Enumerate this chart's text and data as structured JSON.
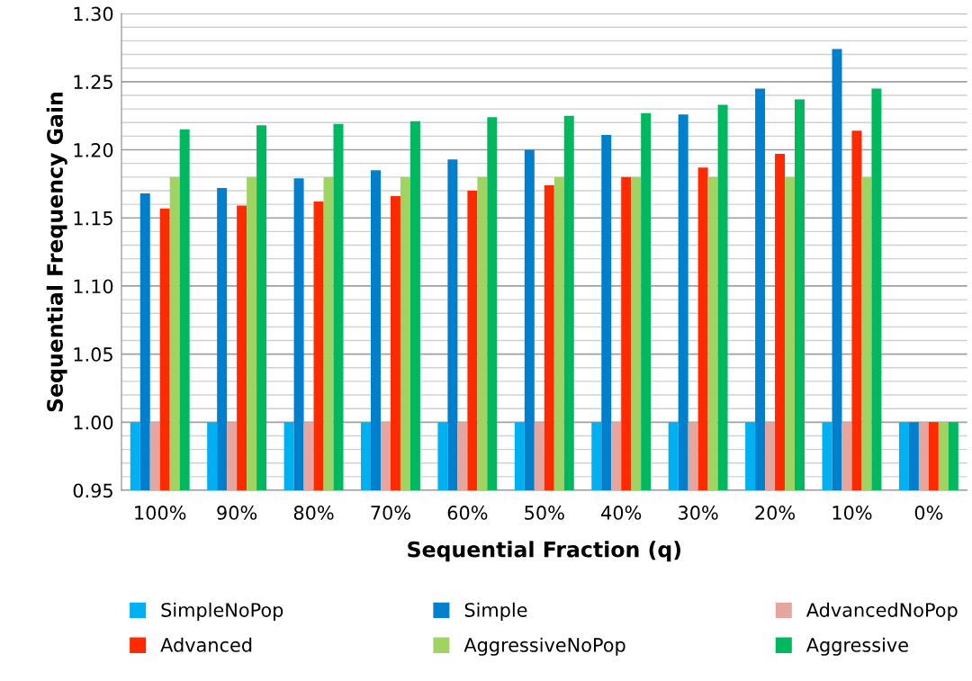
{
  "chart_data": {
    "type": "bar",
    "xlabel": "Sequential Fraction (q)",
    "ylabel": "Sequential Frequency Gain",
    "categories": [
      "100%",
      "90%",
      "80%",
      "70%",
      "60%",
      "50%",
      "40%",
      "30%",
      "20%",
      "10%",
      "0%"
    ],
    "series": [
      {
        "name": "SimpleNoPop",
        "color": "#00b0f0",
        "values": [
          1.0,
          1.0,
          1.0,
          1.0,
          1.0,
          1.0,
          1.0,
          1.0,
          1.0,
          1.0,
          1.0
        ]
      },
      {
        "name": "Simple",
        "color": "#0080cc",
        "values": [
          1.168,
          1.172,
          1.179,
          1.185,
          1.193,
          1.2,
          1.211,
          1.226,
          1.245,
          1.274,
          1.0
        ]
      },
      {
        "name": "AdvancedNoPop",
        "color": "#e6a6a0",
        "values": [
          1.0,
          1.0,
          1.0,
          1.0,
          1.0,
          1.0,
          1.0,
          1.0,
          1.0,
          1.0,
          1.0
        ]
      },
      {
        "name": "Advanced",
        "color": "#ff2a00",
        "values": [
          1.157,
          1.159,
          1.162,
          1.166,
          1.17,
          1.174,
          1.18,
          1.187,
          1.197,
          1.214,
          1.0
        ]
      },
      {
        "name": "AggressiveNoPop",
        "color": "#a0d462",
        "values": [
          1.18,
          1.18,
          1.18,
          1.18,
          1.18,
          1.18,
          1.18,
          1.18,
          1.18,
          1.18,
          1.0
        ]
      },
      {
        "name": "Aggressive",
        "color": "#00b860",
        "values": [
          1.215,
          1.218,
          1.219,
          1.221,
          1.224,
          1.225,
          1.227,
          1.233,
          1.237,
          1.245,
          1.0
        ]
      }
    ],
    "ylim": [
      0.95,
      1.3
    ],
    "yticks": [
      "0.95",
      {
        "value": 0.96,
        "label": null
      },
      {
        "value": 0.97,
        "label": null
      },
      {
        "value": 0.98,
        "label": null
      },
      {
        "value": 0.99,
        "label": null
      },
      {
        "value": 1.0,
        "label": "1.00"
      },
      {
        "value": 1.01,
        "label": null
      },
      {
        "value": 1.02,
        "label": null
      },
      {
        "value": 1.03,
        "label": null
      },
      {
        "value": 1.04,
        "label": null
      },
      {
        "value": 1.05,
        "label": "1.05"
      },
      {
        "value": 1.06,
        "label": null
      },
      {
        "value": 1.07,
        "label": null
      },
      {
        "value": 1.08,
        "label": null
      },
      {
        "value": 1.09,
        "label": null
      },
      {
        "value": 1.1,
        "label": "1.10"
      },
      {
        "value": 1.11,
        "label": null
      },
      {
        "value": 1.12,
        "label": null
      },
      {
        "value": 1.13,
        "label": null
      },
      {
        "value": 1.14,
        "label": null
      },
      {
        "value": 1.15,
        "label": "1.15"
      },
      {
        "value": 1.16,
        "label": null
      },
      {
        "value": 1.17,
        "label": null
      },
      {
        "value": 1.18,
        "label": null
      },
      {
        "value": 1.19,
        "label": null
      },
      {
        "value": 1.2,
        "label": "1.20"
      },
      {
        "value": 1.21,
        "label": null
      },
      {
        "value": 1.22,
        "label": null
      },
      {
        "value": 1.23,
        "label": null
      },
      {
        "value": 1.24,
        "label": null
      },
      {
        "value": 1.25,
        "label": "1.25"
      },
      {
        "value": 1.26,
        "label": null
      },
      {
        "value": 1.27,
        "label": null
      },
      {
        "value": 1.28,
        "label": null
      },
      {
        "value": 1.29,
        "label": null
      },
      {
        "value": 1.3,
        "label": "1.30"
      }
    ],
    "grid": "y",
    "legend": "bottom"
  }
}
